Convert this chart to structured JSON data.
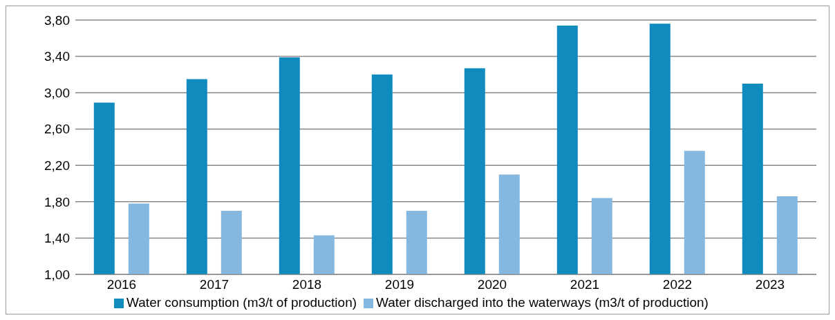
{
  "chart_data": {
    "type": "bar",
    "categories": [
      "2016",
      "2017",
      "2018",
      "2019",
      "2020",
      "2021",
      "2022",
      "2023"
    ],
    "series": [
      {
        "name": "Water consumption (m3/t of production)",
        "color": "#0f8bbd",
        "values": [
          2.89,
          3.15,
          3.39,
          3.2,
          3.27,
          3.74,
          3.76,
          3.1
        ]
      },
      {
        "name": "Water discharged into the waterways (m3/t of production)",
        "color": "#85b8e0",
        "values": [
          1.78,
          1.7,
          1.43,
          1.7,
          2.1,
          1.84,
          2.36,
          1.86
        ]
      }
    ],
    "ylim": [
      1,
      3.8
    ],
    "yticks": [
      {
        "value": 1,
        "label": "1,00"
      },
      {
        "value": 1.4,
        "label": "1,40"
      },
      {
        "value": 1.8,
        "label": "1,80"
      },
      {
        "value": 2.2,
        "label": "2,20"
      },
      {
        "value": 2.6,
        "label": "2,60"
      },
      {
        "value": 3,
        "label": "3,00"
      },
      {
        "value": 3.4,
        "label": "3,40"
      },
      {
        "value": 3.8,
        "label": "3,80"
      }
    ],
    "grid": "y",
    "legend": "bottom"
  }
}
